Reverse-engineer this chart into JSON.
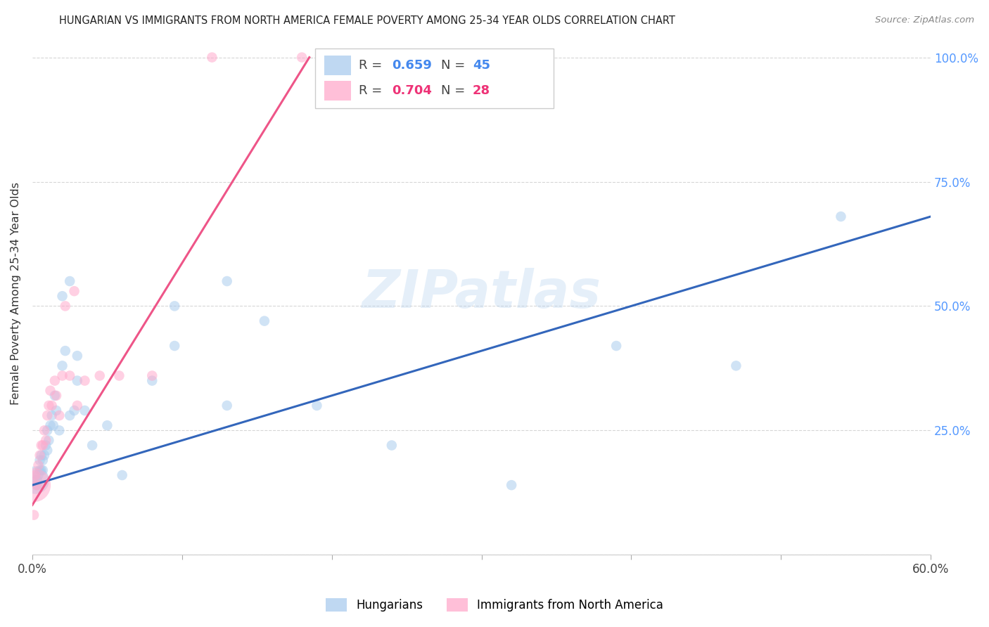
{
  "title": "HUNGARIAN VS IMMIGRANTS FROM NORTH AMERICA FEMALE POVERTY AMONG 25-34 YEAR OLDS CORRELATION CHART",
  "source": "Source: ZipAtlas.com",
  "ylabel": "Female Poverty Among 25-34 Year Olds",
  "xlim": [
    0.0,
    0.6
  ],
  "ylim": [
    0.0,
    1.05
  ],
  "xtick_positions": [
    0.0,
    0.1,
    0.2,
    0.3,
    0.4,
    0.5,
    0.6
  ],
  "xtick_labels": [
    "0.0%",
    "",
    "",
    "",
    "",
    "",
    "60.0%"
  ],
  "ytick_positions": [
    0.0,
    0.25,
    0.5,
    0.75,
    1.0
  ],
  "ytick_labels_right": [
    "",
    "25.0%",
    "50.0%",
    "75.0%",
    "100.0%"
  ],
  "blue_color": "#AACCEE",
  "pink_color": "#FFAACC",
  "blue_line_color": "#3366BB",
  "pink_line_color": "#EE5588",
  "blue_r_color": "#4488EE",
  "pink_r_color": "#EE3377",
  "watermark": "ZIPatlas",
  "hungarian_x": [
    0.002,
    0.003,
    0.003,
    0.004,
    0.005,
    0.005,
    0.006,
    0.006,
    0.007,
    0.007,
    0.008,
    0.009,
    0.01,
    0.01,
    0.011,
    0.012,
    0.013,
    0.014,
    0.015,
    0.016,
    0.018,
    0.02,
    0.022,
    0.025,
    0.028,
    0.03,
    0.035,
    0.04,
    0.05,
    0.06,
    0.08,
    0.095,
    0.13,
    0.155,
    0.19,
    0.24,
    0.32,
    0.39,
    0.47,
    0.54,
    0.095,
    0.13,
    0.02,
    0.025,
    0.03
  ],
  "hungarian_y": [
    0.15,
    0.15,
    0.14,
    0.16,
    0.17,
    0.19,
    0.17,
    0.2,
    0.17,
    0.19,
    0.2,
    0.22,
    0.21,
    0.25,
    0.23,
    0.26,
    0.28,
    0.26,
    0.32,
    0.29,
    0.25,
    0.38,
    0.41,
    0.28,
    0.29,
    0.35,
    0.29,
    0.22,
    0.26,
    0.16,
    0.35,
    0.5,
    0.3,
    0.47,
    0.3,
    0.22,
    0.14,
    0.42,
    0.38,
    0.68,
    0.42,
    0.55,
    0.52,
    0.55,
    0.4
  ],
  "hungarian_sizes": [
    800,
    120,
    110,
    110,
    110,
    110,
    110,
    110,
    110,
    110,
    110,
    110,
    110,
    110,
    110,
    110,
    110,
    110,
    110,
    110,
    110,
    110,
    110,
    110,
    110,
    110,
    110,
    110,
    110,
    110,
    110,
    110,
    110,
    110,
    110,
    110,
    110,
    110,
    110,
    110,
    110,
    110,
    110,
    110,
    110
  ],
  "immigrant_x": [
    0.001,
    0.002,
    0.003,
    0.004,
    0.005,
    0.006,
    0.007,
    0.008,
    0.009,
    0.01,
    0.011,
    0.012,
    0.013,
    0.015,
    0.016,
    0.018,
    0.02,
    0.022,
    0.025,
    0.028,
    0.03,
    0.035,
    0.045,
    0.058,
    0.08,
    0.12,
    0.18,
    0.001
  ],
  "immigrant_y": [
    0.14,
    0.16,
    0.14,
    0.18,
    0.2,
    0.22,
    0.22,
    0.25,
    0.23,
    0.28,
    0.3,
    0.33,
    0.3,
    0.35,
    0.32,
    0.28,
    0.36,
    0.5,
    0.36,
    0.53,
    0.3,
    0.35,
    0.36,
    0.36,
    0.36,
    1.0,
    1.0,
    0.08
  ],
  "immigrant_sizes": [
    1200,
    110,
    110,
    110,
    110,
    110,
    110,
    110,
    110,
    110,
    110,
    110,
    110,
    110,
    110,
    110,
    110,
    110,
    110,
    110,
    110,
    110,
    110,
    110,
    110,
    110,
    110,
    110
  ],
  "blue_trendline_x0": 0.0,
  "blue_trendline_x1": 0.6,
  "blue_trendline_y0": 0.14,
  "blue_trendline_y1": 0.68,
  "pink_trendline_x0": 0.0,
  "pink_trendline_x1": 0.185,
  "pink_trendline_y0": 0.1,
  "pink_trendline_y1": 1.0
}
